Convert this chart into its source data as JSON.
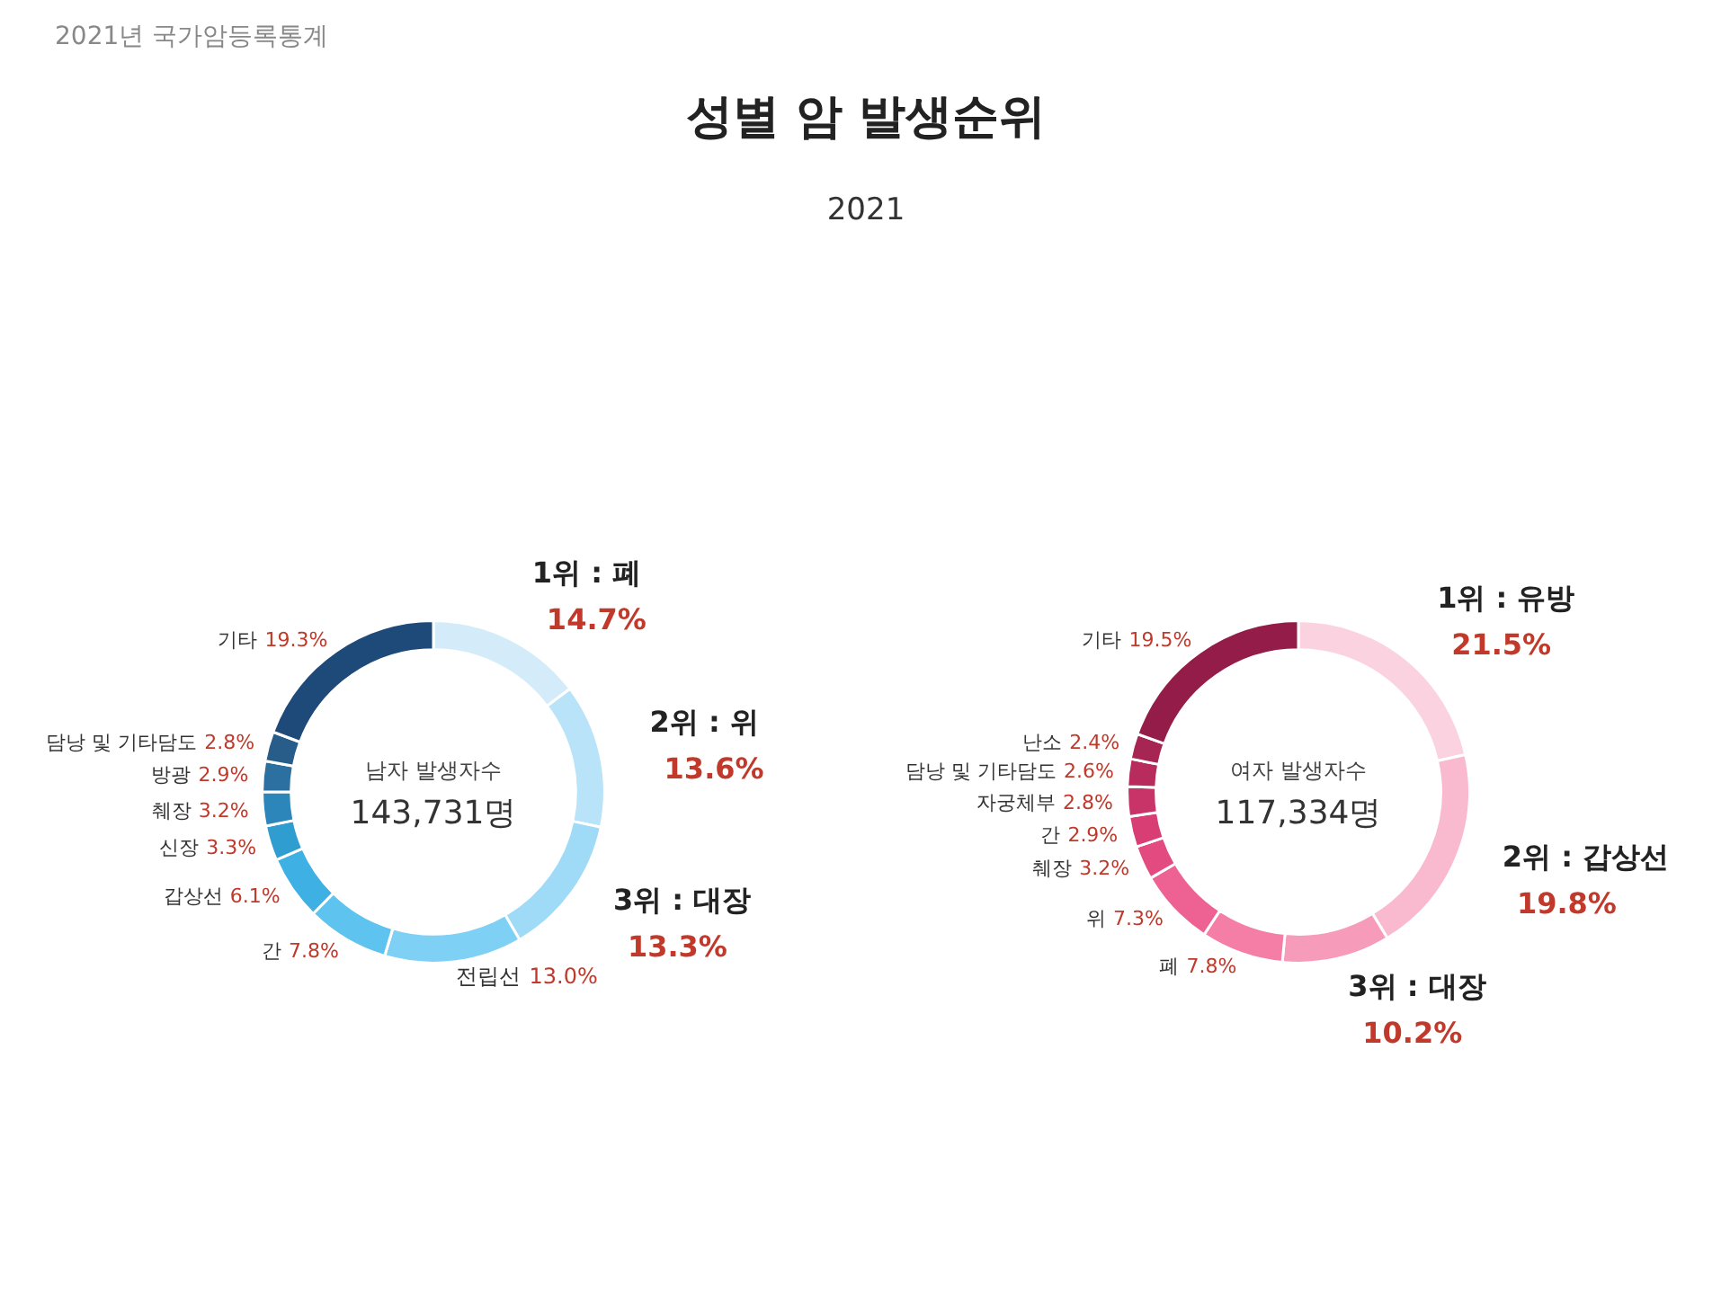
{
  "chart_data": [
    {
      "type": "donut",
      "title": "성별 암 발생순위",
      "subtitle": "2021",
      "annotations": [
        "남자 발생자수",
        "143,731명",
        "2021년 국가암등록통계"
      ],
      "categories": [
        "1위 : 폐",
        "2위 : 위",
        "3위 : 대장",
        "전립선",
        "간",
        "갑상선",
        "신장",
        "췌장",
        "방광",
        "담낭 및 기타담도",
        "기타"
      ],
      "values": [
        14.7,
        13.6,
        13.3,
        13.0,
        7.8,
        6.1,
        3.3,
        3.2,
        2.9,
        2.8,
        19.3
      ],
      "value_labels": [
        "14.7%",
        "13.6%",
        "13.3%",
        "13.0%",
        "7.8%",
        "6.1%",
        "3.3%",
        "3.2%",
        "2.9%",
        "2.8%",
        "19.3%"
      ],
      "colors": [
        "#d4ecf9",
        "#b9e3f8",
        "#9fdaf7",
        "#7fd0f5",
        "#5ec3ef",
        "#3fb0e3",
        "#2f9dd0",
        "#2d86b9",
        "#2b70a0",
        "#285d8a",
        "#1d4a79"
      ]
    },
    {
      "type": "donut",
      "annotations": [
        "여자 발생자수",
        "117,334명"
      ],
      "categories": [
        "1위 : 유방",
        "2위 : 갑상선",
        "3위 : 대장",
        "폐",
        "위",
        "췌장",
        "간",
        "자궁체부",
        "담낭 및 기타담도",
        "난소",
        "기타"
      ],
      "values": [
        21.5,
        19.8,
        10.2,
        7.8,
        7.3,
        3.2,
        2.9,
        2.8,
        2.6,
        2.4,
        19.5
      ],
      "value_labels": [
        "21.5%",
        "19.8%",
        "10.2%",
        "7.8%",
        "7.3%",
        "3.2%",
        "2.9%",
        "2.8%",
        "2.6%",
        "2.4%",
        "19.5%"
      ],
      "colors": [
        "#fbd3e0",
        "#f9b9cf",
        "#f79bbb",
        "#f47ea6",
        "#ee6293",
        "#e34b80",
        "#d83d74",
        "#c93468",
        "#b72c5c",
        "#a72552",
        "#931c48"
      ]
    }
  ]
}
